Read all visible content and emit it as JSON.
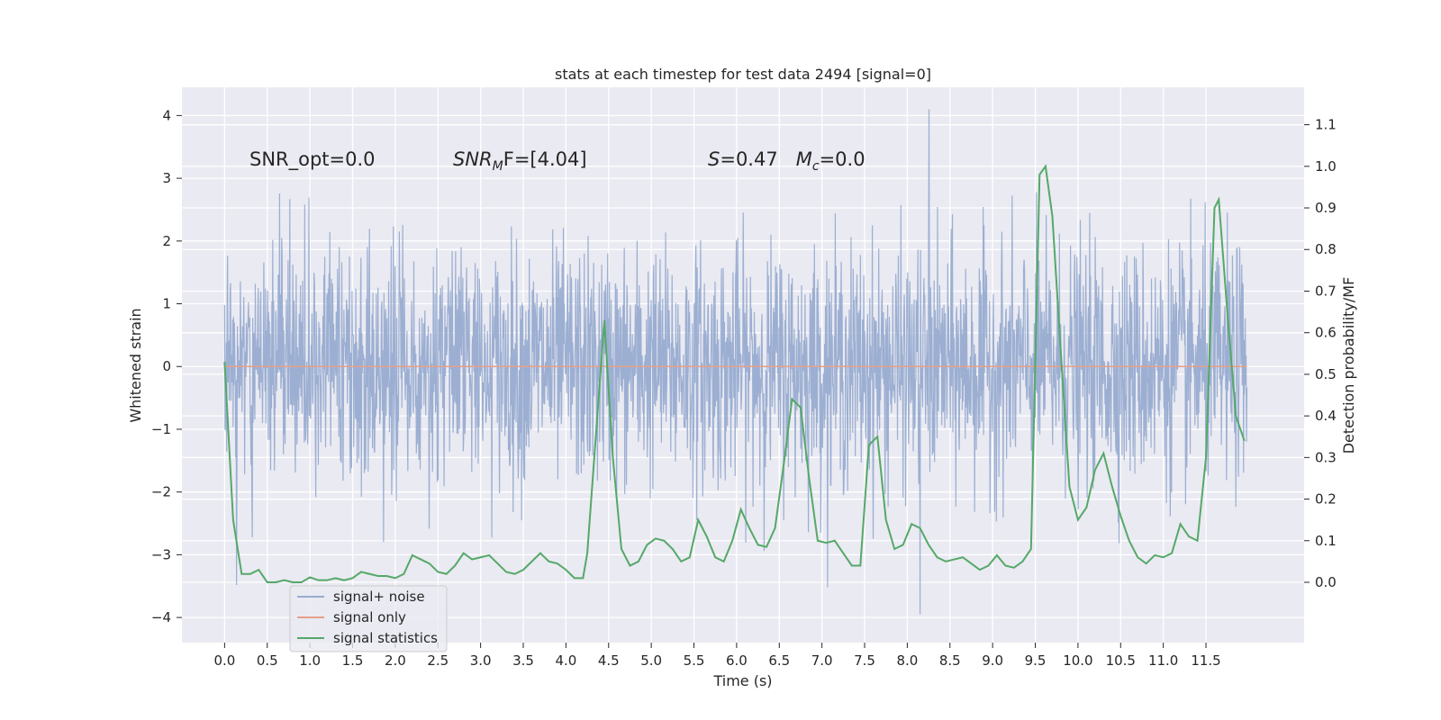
{
  "chart_data": {
    "type": "line",
    "title": "stats at each timestep for test data 2494 [signal=0]",
    "xlabel": "Time (s)",
    "ylabel": "Whitened strain",
    "y2label": "Detection probability/MF",
    "xlim": [
      -0.5,
      12.65
    ],
    "ylim": [
      -4.4,
      4.45
    ],
    "y2lim": [
      -0.145,
      1.19
    ],
    "x_ticks": [
      0.0,
      0.5,
      1.0,
      1.5,
      2.0,
      2.5,
      3.0,
      3.5,
      4.0,
      4.5,
      5.0,
      5.5,
      6.0,
      6.5,
      7.0,
      7.5,
      8.0,
      8.5,
      9.0,
      9.5,
      10.0,
      10.5,
      11.0,
      11.5
    ],
    "x_tick_labels": [
      "0.0",
      "0.5",
      "1.0",
      "1.5",
      "2.0",
      "2.5",
      "3.0",
      "3.5",
      "4.0",
      "4.5",
      "5.0",
      "5.5",
      "6.0",
      "6.5",
      "7.0",
      "7.5",
      "8.0",
      "8.5",
      "9.0",
      "9.5",
      "10.0",
      "10.5",
      "11.0",
      "11.5"
    ],
    "y_ticks": [
      -4,
      -3,
      -2,
      -1,
      0,
      1,
      2,
      3,
      4
    ],
    "y_tick_labels": [
      "−4",
      "−3",
      "−2",
      "−1",
      "0",
      "1",
      "2",
      "3",
      "4"
    ],
    "y2_ticks": [
      0.0,
      0.1,
      0.2,
      0.3,
      0.4,
      0.5,
      0.6,
      0.7,
      0.8,
      0.9,
      1.0,
      1.1
    ],
    "y2_tick_labels": [
      "0.0",
      "0.1",
      "0.2",
      "0.3",
      "0.4",
      "0.5",
      "0.6",
      "0.7",
      "0.8",
      "0.9",
      "1.0",
      "1.1"
    ],
    "grid": true,
    "legend_position": "lower-left",
    "annotations": [
      {
        "text": "SNR_opt=0.0",
        "x": 0.2,
        "y": 3.3,
        "italic": false
      },
      {
        "text_main": "SNR",
        "text_sub": "M",
        "text_rest": "F=[4.04]",
        "x": 2.6,
        "y": 3.3,
        "italic_main": true
      },
      {
        "text_main": "S",
        "text_rest": "=0.47   ",
        "text_main2": "M",
        "text_sub2": "c",
        "text_rest2": "=0.0",
        "x": 5.6,
        "y": 3.3
      }
    ],
    "series": [
      {
        "name": "signal+ noise",
        "color": "#98acd0",
        "axis": "left",
        "kind": "noise",
        "time_range": [
          0.0,
          11.98
        ],
        "typical_amplitude": 1.3,
        "max": 4.1,
        "min": -3.95
      },
      {
        "name": "signal only",
        "color": "#e5a08a",
        "axis": "left",
        "x": [
          0.0,
          11.98
        ],
        "y": [
          0.0,
          0.0
        ]
      },
      {
        "name": "signal statistics",
        "color": "#55a868",
        "axis": "right",
        "x": [
          0.0,
          0.1,
          0.2,
          0.3,
          0.4,
          0.5,
          0.6,
          0.7,
          0.8,
          0.9,
          1.0,
          1.1,
          1.2,
          1.3,
          1.4,
          1.5,
          1.6,
          1.7,
          1.8,
          1.9,
          2.0,
          2.1,
          2.2,
          2.3,
          2.4,
          2.5,
          2.6,
          2.7,
          2.8,
          2.9,
          3.0,
          3.1,
          3.2,
          3.3,
          3.4,
          3.5,
          3.6,
          3.7,
          3.8,
          3.9,
          4.0,
          4.1,
          4.2,
          4.25,
          4.35,
          4.45,
          4.55,
          4.65,
          4.75,
          4.85,
          4.95,
          5.05,
          5.15,
          5.25,
          5.35,
          5.45,
          5.55,
          5.65,
          5.75,
          5.85,
          5.95,
          6.05,
          6.15,
          6.25,
          6.35,
          6.45,
          6.55,
          6.65,
          6.75,
          6.85,
          6.95,
          7.05,
          7.15,
          7.25,
          7.35,
          7.45,
          7.55,
          7.65,
          7.75,
          7.85,
          7.95,
          8.05,
          8.15,
          8.25,
          8.35,
          8.45,
          8.55,
          8.65,
          8.75,
          8.85,
          8.95,
          9.05,
          9.15,
          9.25,
          9.35,
          9.45,
          9.55,
          9.62,
          9.7,
          9.8,
          9.9,
          10.0,
          10.1,
          10.2,
          10.3,
          10.4,
          10.5,
          10.6,
          10.7,
          10.8,
          10.9,
          11.0,
          11.1,
          11.2,
          11.3,
          11.4,
          11.5,
          11.6,
          11.65,
          11.75,
          11.85,
          11.95
        ],
        "y": [
          0.53,
          0.15,
          0.02,
          0.02,
          0.03,
          0.0,
          0.0,
          0.005,
          0.0,
          0.0,
          0.012,
          0.005,
          0.005,
          0.01,
          0.005,
          0.01,
          0.025,
          0.02,
          0.015,
          0.015,
          0.01,
          0.02,
          0.065,
          0.055,
          0.045,
          0.025,
          0.02,
          0.04,
          0.07,
          0.055,
          0.06,
          0.065,
          0.045,
          0.025,
          0.02,
          0.03,
          0.05,
          0.07,
          0.05,
          0.045,
          0.03,
          0.01,
          0.01,
          0.07,
          0.35,
          0.63,
          0.3,
          0.08,
          0.04,
          0.05,
          0.09,
          0.105,
          0.1,
          0.08,
          0.05,
          0.06,
          0.15,
          0.11,
          0.06,
          0.05,
          0.1,
          0.175,
          0.13,
          0.09,
          0.085,
          0.13,
          0.28,
          0.44,
          0.42,
          0.25,
          0.1,
          0.095,
          0.1,
          0.07,
          0.04,
          0.04,
          0.33,
          0.35,
          0.15,
          0.08,
          0.09,
          0.14,
          0.13,
          0.09,
          0.06,
          0.05,
          0.055,
          0.06,
          0.045,
          0.03,
          0.04,
          0.065,
          0.04,
          0.035,
          0.05,
          0.08,
          0.98,
          1.0,
          0.88,
          0.55,
          0.23,
          0.15,
          0.18,
          0.27,
          0.31,
          0.23,
          0.16,
          0.1,
          0.06,
          0.045,
          0.065,
          0.06,
          0.07,
          0.14,
          0.11,
          0.1,
          0.3,
          0.9,
          0.92,
          0.65,
          0.4,
          0.34
        ]
      }
    ]
  },
  "legend": {
    "items": [
      {
        "label": "signal+ noise",
        "color": "#98acd0"
      },
      {
        "label": "signal only",
        "color": "#e5a08a"
      },
      {
        "label": "signal statistics",
        "color": "#55a868"
      }
    ]
  }
}
